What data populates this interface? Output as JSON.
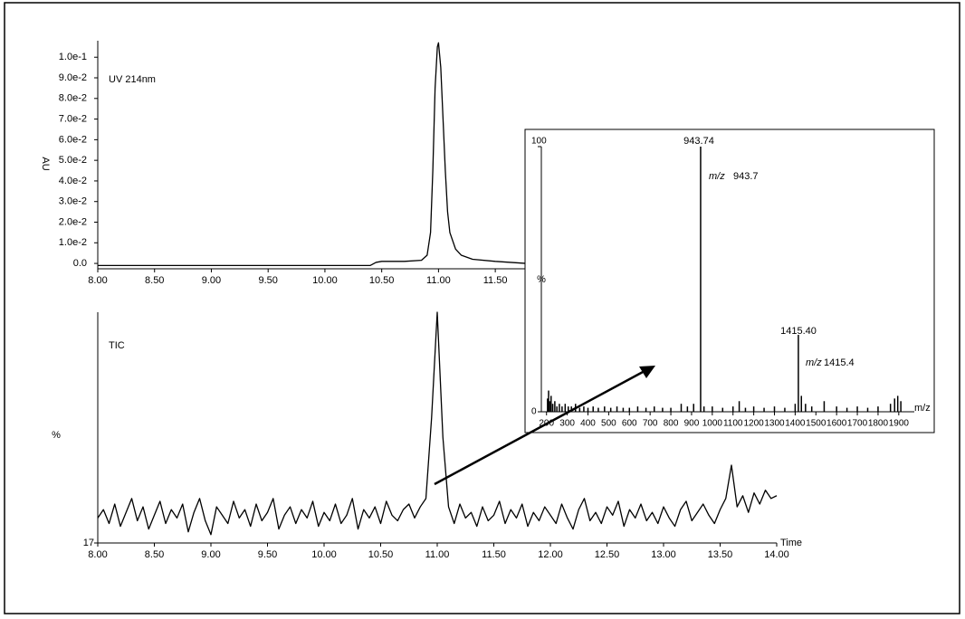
{
  "chart_data": [
    {
      "type": "line",
      "title": "UV 214nm",
      "ylabel": "AU",
      "color": "#000000",
      "x": [
        8,
        8.5,
        9,
        9.5,
        10,
        10.4,
        10.45,
        10.5,
        10.7,
        10.85,
        10.9,
        10.93,
        10.95,
        10.97,
        10.99,
        11.0,
        11.02,
        11.04,
        11.06,
        11.08,
        11.1,
        11.15,
        11.2,
        11.3,
        11.5,
        11.77
      ],
      "values": [
        -0.001,
        -0.001,
        -0.001,
        -0.001,
        -0.001,
        -0.001,
        0.0005,
        0.001,
        0.001,
        0.0015,
        0.004,
        0.015,
        0.045,
        0.085,
        0.105,
        0.107,
        0.095,
        0.07,
        0.045,
        0.025,
        0.015,
        0.007,
        0.004,
        0.002,
        0.001,
        0.0
      ],
      "xlim": [
        8,
        11.77
      ],
      "ylim": [
        -0.0026,
        0.108
      ],
      "xticks": [
        {
          "value": 8,
          "label": "8.00"
        },
        {
          "value": 8.5,
          "label": "8.50"
        },
        {
          "value": 9,
          "label": "9.00"
        },
        {
          "value": 9.5,
          "label": "9.50"
        },
        {
          "value": 10,
          "label": "10.00"
        },
        {
          "value": 10.5,
          "label": "10.50"
        },
        {
          "value": 11,
          "label": "11.00"
        },
        {
          "value": 11.5,
          "label": "11.50"
        }
      ],
      "yticks": [
        {
          "value": 0,
          "label": "0.0"
        },
        {
          "value": 0.01,
          "label": "1.0e-2"
        },
        {
          "value": 0.02,
          "label": "2.0e-2"
        },
        {
          "value": 0.03,
          "label": "3.0e-2"
        },
        {
          "value": 0.04,
          "label": "4.0e-2"
        },
        {
          "value": 0.05,
          "label": "5.0e-2"
        },
        {
          "value": 0.06,
          "label": "6.0e-2"
        },
        {
          "value": 0.07,
          "label": "7.0e-2"
        },
        {
          "value": 0.08,
          "label": "8.0e-2"
        },
        {
          "value": 0.09,
          "label": "9.0e-2"
        },
        {
          "value": 0.1,
          "label": "1.0e-1"
        }
      ]
    },
    {
      "type": "line",
      "title": "TIC",
      "ylabel": "%",
      "xlabel": "Time",
      "color": "#000000",
      "x": [
        8,
        8.05,
        8.1,
        8.15,
        8.2,
        8.25,
        8.3,
        8.35,
        8.4,
        8.45,
        8.5,
        8.55,
        8.6,
        8.65,
        8.7,
        8.75,
        8.8,
        8.85,
        8.9,
        8.95,
        9,
        9.05,
        9.1,
        9.15,
        9.2,
        9.25,
        9.3,
        9.35,
        9.4,
        9.45,
        9.5,
        9.55,
        9.6,
        9.65,
        9.7,
        9.75,
        9.8,
        9.85,
        9.9,
        9.95,
        10,
        10.05,
        10.1,
        10.15,
        10.2,
        10.25,
        10.3,
        10.35,
        10.4,
        10.45,
        10.5,
        10.55,
        10.6,
        10.65,
        10.7,
        10.75,
        10.8,
        10.85,
        10.9,
        10.95,
        11,
        11.05,
        11.1,
        11.15,
        11.2,
        11.25,
        11.3,
        11.35,
        11.4,
        11.45,
        11.5,
        11.55,
        11.6,
        11.65,
        11.7,
        11.75,
        11.8,
        11.85,
        11.9,
        11.95,
        12,
        12.05,
        12.1,
        12.15,
        12.2,
        12.25,
        12.3,
        12.35,
        12.4,
        12.45,
        12.5,
        12.55,
        12.6,
        12.65,
        12.7,
        12.75,
        12.8,
        12.85,
        12.9,
        12.95,
        13,
        13.05,
        13.1,
        13.15,
        13.2,
        13.25,
        13.3,
        13.35,
        13.4,
        13.45,
        13.5,
        13.55,
        13.6,
        13.65,
        13.7,
        13.75,
        13.8,
        13.85,
        13.9,
        13.95,
        14
      ],
      "values": [
        26,
        29,
        24,
        31,
        23,
        28,
        33,
        25,
        30,
        22,
        27,
        32,
        24,
        29,
        26,
        31,
        21,
        28,
        33,
        25,
        20,
        30,
        27,
        24,
        32,
        26,
        29,
        23,
        31,
        25,
        28,
        33,
        22,
        27,
        30,
        24,
        29,
        26,
        32,
        23,
        28,
        25,
        31,
        24,
        27,
        33,
        22,
        29,
        26,
        30,
        24,
        32,
        27,
        25,
        29,
        31,
        26,
        30,
        33,
        62,
        100,
        55,
        30,
        24,
        31,
        26,
        28,
        23,
        30,
        25,
        27,
        32,
        24,
        29,
        26,
        31,
        23,
        28,
        25,
        30,
        27,
        24,
        31,
        26,
        22,
        29,
        33,
        25,
        28,
        24,
        30,
        27,
        32,
        23,
        29,
        26,
        31,
        25,
        28,
        24,
        30,
        26,
        23,
        29,
        32,
        25,
        28,
        31,
        27,
        24,
        29,
        33,
        45,
        30,
        34,
        28,
        35,
        31,
        36,
        33,
        34
      ],
      "xlim": [
        8,
        14
      ],
      "ylim": [
        17,
        100
      ],
      "xticks": [
        {
          "value": 8,
          "label": "8.00"
        },
        {
          "value": 8.5,
          "label": "8.50"
        },
        {
          "value": 9,
          "label": "9.00"
        },
        {
          "value": 9.5,
          "label": "9.50"
        },
        {
          "value": 10,
          "label": "10.00"
        },
        {
          "value": 10.5,
          "label": "10.50"
        },
        {
          "value": 11,
          "label": "11.00"
        },
        {
          "value": 11.5,
          "label": "11.50"
        },
        {
          "value": 12,
          "label": "12.00"
        },
        {
          "value": 12.5,
          "label": "12.50"
        },
        {
          "value": 13,
          "label": "13.00"
        },
        {
          "value": 13.5,
          "label": "13.50"
        },
        {
          "value": 14,
          "label": "14.00"
        }
      ],
      "yticks": [
        17
      ]
    },
    {
      "type": "bar",
      "ylabel": "%",
      "xlabel": "m/z",
      "color": "#000000",
      "x": [
        205,
        210,
        215,
        222,
        230,
        240,
        250,
        262,
        275,
        290,
        305,
        320,
        340,
        360,
        380,
        400,
        425,
        450,
        480,
        510,
        540,
        570,
        600,
        640,
        680,
        720,
        760,
        800,
        850,
        880,
        910,
        943.74,
        960,
        1000,
        1050,
        1100,
        1130,
        1160,
        1200,
        1250,
        1300,
        1350,
        1400,
        1415.4,
        1430,
        1450,
        1480,
        1540,
        1600,
        1650,
        1700,
        1750,
        1800,
        1860,
        1880,
        1895,
        1910
      ],
      "values": [
        5,
        8,
        4,
        6,
        3,
        4,
        2,
        3,
        2,
        3,
        2,
        2,
        3,
        1.5,
        2,
        1.5,
        2,
        1.5,
        2,
        1.5,
        2,
        1.5,
        1.5,
        2,
        1.5,
        2,
        1.5,
        1.5,
        3,
        2,
        3,
        100,
        2,
        2,
        1.5,
        2,
        4,
        1.5,
        2,
        1.5,
        2,
        1.5,
        3,
        29,
        6,
        3,
        2,
        4,
        2,
        1.5,
        2,
        1.5,
        2,
        3,
        5,
        6,
        4
      ],
      "xlim": [
        175,
        1975
      ],
      "ylim": [
        0,
        100
      ],
      "xticks": [
        200,
        300,
        400,
        500,
        600,
        700,
        800,
        900,
        1000,
        1100,
        1200,
        1300,
        1400,
        1500,
        1600,
        1700,
        1800,
        1900
      ],
      "yticks": [
        0,
        100
      ],
      "annotations": [
        "943.74",
        "m/z",
        "943.7",
        "1415.40",
        "m/z",
        "1415.4"
      ]
    }
  ]
}
